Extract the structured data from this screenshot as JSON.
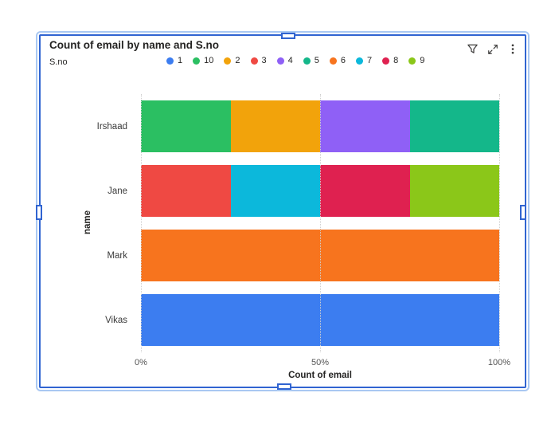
{
  "visual": {
    "title": "Count of email by name and S.no",
    "selected": true,
    "selection_colors": {
      "inner_border": "#3064D1",
      "outer_border": "#A9C8F2"
    },
    "toolbar_icons": [
      {
        "name": "filter-icon"
      },
      {
        "name": "focus-mode-icon"
      },
      {
        "name": "more-options-icon"
      }
    ]
  },
  "legend": {
    "title": "S.no",
    "items": [
      {
        "label": "1",
        "color": "#3C7DF0"
      },
      {
        "label": "10",
        "color": "#2BBF62"
      },
      {
        "label": "2",
        "color": "#F2A30B"
      },
      {
        "label": "3",
        "color": "#EF4943"
      },
      {
        "label": "4",
        "color": "#8F60F6"
      },
      {
        "label": "5",
        "color": "#14B78A"
      },
      {
        "label": "6",
        "color": "#F7741E"
      },
      {
        "label": "7",
        "color": "#0CB8DB"
      },
      {
        "label": "8",
        "color": "#DF2150"
      },
      {
        "label": "9",
        "color": "#8BC719"
      }
    ]
  },
  "chart_data": {
    "type": "bar",
    "orientation": "horizontal",
    "stacked": true,
    "normalized": "100%",
    "title": "Count of email by name and S.no",
    "xlabel": "Count of email",
    "ylabel": "name",
    "x_axis": {
      "ticks": [
        "0%",
        "50%",
        "100%"
      ],
      "tick_positions_pct": [
        0,
        50,
        100
      ],
      "range_pct": [
        0,
        100
      ]
    },
    "y_axis": {
      "categories": [
        "Irshaad",
        "Jane",
        "Mark",
        "Vikas"
      ]
    },
    "legend_title": "S.no",
    "legend_position": "top",
    "grid": "vertical-dotted",
    "series_colors": {
      "1": "#3C7DF0",
      "10": "#2BBF62",
      "2": "#F2A30B",
      "3": "#EF4943",
      "4": "#8F60F6",
      "5": "#14B78A",
      "6": "#F7741E",
      "7": "#0CB8DB",
      "8": "#DF2150",
      "9": "#8BC719"
    },
    "bars": [
      {
        "category": "Irshaad",
        "segments": [
          {
            "series": "10",
            "value_pct": 25
          },
          {
            "series": "2",
            "value_pct": 25
          },
          {
            "series": "4",
            "value_pct": 25
          },
          {
            "series": "5",
            "value_pct": 25
          }
        ]
      },
      {
        "category": "Jane",
        "segments": [
          {
            "series": "3",
            "value_pct": 25
          },
          {
            "series": "7",
            "value_pct": 25
          },
          {
            "series": "8",
            "value_pct": 25
          },
          {
            "series": "9",
            "value_pct": 25
          }
        ]
      },
      {
        "category": "Mark",
        "segments": [
          {
            "series": "6",
            "value_pct": 100
          }
        ]
      },
      {
        "category": "Vikas",
        "segments": [
          {
            "series": "1",
            "value_pct": 100
          }
        ]
      }
    ]
  }
}
